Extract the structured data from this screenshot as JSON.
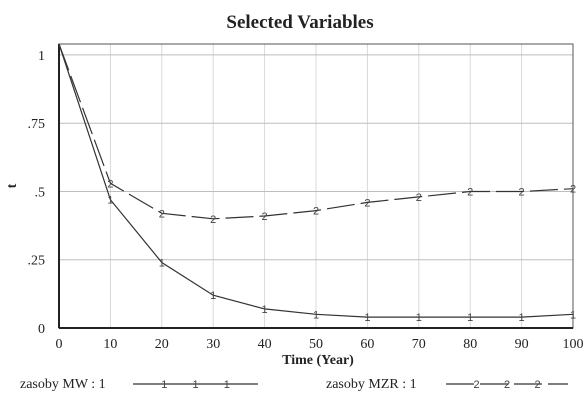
{
  "chart_data": {
    "type": "line",
    "title": "Selected Variables",
    "xlabel": "Time (Year)",
    "ylabel": "t",
    "xlim": [
      0,
      100
    ],
    "ylim": [
      0,
      1.04
    ],
    "x_ticks": [
      0,
      10,
      20,
      30,
      40,
      50,
      60,
      70,
      80,
      90,
      100
    ],
    "x_tick_labels": [
      "0",
      "10",
      "20",
      "30",
      "40",
      "50",
      "60",
      "70",
      "80",
      "90",
      "100"
    ],
    "y_ticks": [
      0,
      0.25,
      0.5,
      0.75,
      1
    ],
    "y_tick_labels": [
      "0",
      ".25",
      ".5",
      ".75",
      "1"
    ],
    "grid": true,
    "legend_position": "bottom",
    "x": [
      0,
      10,
      20,
      30,
      40,
      50,
      60,
      70,
      80,
      90,
      100
    ],
    "series": [
      {
        "name": "zasoby MW : 1",
        "marker": "1",
        "color": "#333333",
        "dash": "solid",
        "values": [
          1.04,
          0.47,
          0.24,
          0.12,
          0.07,
          0.05,
          0.04,
          0.04,
          0.04,
          0.04,
          0.05
        ]
      },
      {
        "name": "zasoby MZR : 1",
        "marker": "2",
        "color": "#333333",
        "dash": "dashed",
        "values": [
          1.04,
          0.53,
          0.42,
          0.4,
          0.41,
          0.43,
          0.46,
          0.48,
          0.5,
          0.5,
          0.51
        ]
      }
    ]
  }
}
